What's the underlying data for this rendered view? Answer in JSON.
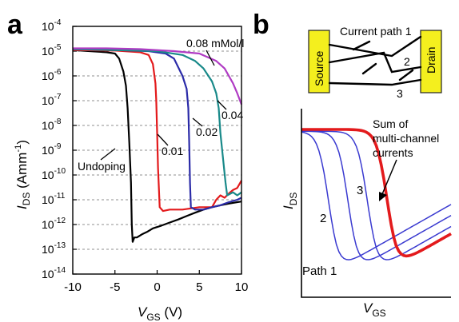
{
  "figure": {
    "panel_a": {
      "label": "a",
      "y_axis": {
        "main": "I",
        "sub": "DS",
        "unit": "(Amm",
        "unit_exp": "-1",
        "unit_close": ")"
      },
      "x_axis": {
        "main": "V",
        "sub": "GS",
        "unit": "(V)"
      },
      "annotations": [
        {
          "text": "0.08 mMol/l"
        },
        {
          "text": "0.04"
        },
        {
          "text": "0.02"
        },
        {
          "text": "0.01"
        },
        {
          "text": "Undoping"
        }
      ]
    },
    "panel_b": {
      "label": "b",
      "source_label": "Source",
      "drain_label": "Drain",
      "path_labels": [
        "Current path 1",
        "2",
        "3"
      ],
      "sum_label": [
        "Sum of",
        "multi-channel",
        "currents"
      ],
      "curve_labels": [
        "Path 1",
        "2",
        "3"
      ],
      "y_axis": {
        "main": "I",
        "sub": "DS"
      },
      "x_axis": {
        "main": "V",
        "sub": "GS"
      }
    }
  },
  "chart_data": [
    {
      "type": "line",
      "title": "",
      "xlabel": "VGS (V)",
      "ylabel": "IDS (Amm-1)",
      "log_y": true,
      "xlim": [
        -10,
        10
      ],
      "ylim": [
        1e-14,
        0.0001
      ],
      "grid": "horizontal dashed at each decade",
      "x_ticks": [
        "-10",
        "-5",
        "0",
        "5",
        "10"
      ],
      "y_ticks": [
        {
          "base": "10",
          "exp": "-4"
        },
        {
          "base": "10",
          "exp": "-5"
        },
        {
          "base": "10",
          "exp": "-6"
        },
        {
          "base": "10",
          "exp": "-7"
        },
        {
          "base": "10",
          "exp": "-8"
        },
        {
          "base": "10",
          "exp": "-9"
        },
        {
          "base": "10",
          "exp": "-10"
        },
        {
          "base": "10",
          "exp": "-11"
        },
        {
          "base": "10",
          "exp": "-12"
        },
        {
          "base": "10",
          "exp": "-13"
        },
        {
          "base": "10",
          "exp": "-14"
        }
      ],
      "series": [
        {
          "name": "Undoping",
          "color": "#000000",
          "points": [
            [
              -10,
              1.1e-05
            ],
            [
              -8,
              1e-05
            ],
            [
              -6,
              9e-06
            ],
            [
              -5,
              8e-06
            ],
            [
              -4.5,
              5e-06
            ],
            [
              -4,
              1.5e-06
            ],
            [
              -3.7,
              4e-07
            ],
            [
              -3.5,
              5e-08
            ],
            [
              -3.3,
              2e-09
            ],
            [
              -3.1,
              5e-11
            ],
            [
              -3,
              1e-12
            ],
            [
              -2.9,
              2e-13
            ],
            [
              -2.7,
              3e-13
            ],
            [
              -2.4,
              3e-13
            ],
            [
              -1.8,
              4e-13
            ],
            [
              -1.2,
              5e-13
            ],
            [
              -0.5,
              7e-13
            ],
            [
              0.5,
              9e-13
            ],
            [
              1.5,
              1.2e-12
            ],
            [
              2.5,
              1.6e-12
            ],
            [
              3.5,
              2.2e-12
            ],
            [
              4.5,
              3e-12
            ],
            [
              5.5,
              4e-12
            ],
            [
              6.5,
              5e-12
            ],
            [
              7.5,
              6e-12
            ],
            [
              8.5,
              7e-12
            ],
            [
              9.5,
              8e-12
            ],
            [
              10,
              8.5e-12
            ]
          ]
        },
        {
          "name": "0.01",
          "color": "#e31a1c",
          "points": [
            [
              -10,
              1.1e-05
            ],
            [
              -5,
              1.05e-05
            ],
            [
              -2,
              9e-06
            ],
            [
              -1,
              7e-06
            ],
            [
              -0.5,
              3e-06
            ],
            [
              -0.2,
              5e-07
            ],
            [
              -0.1,
              1e-07
            ],
            [
              0,
              5e-09
            ],
            [
              0.1,
              2e-10
            ],
            [
              0.3,
              5e-12
            ],
            [
              0.7,
              3.5e-12
            ],
            [
              1.5,
              4e-12
            ],
            [
              3,
              4e-12
            ],
            [
              5,
              5e-12
            ],
            [
              6.5,
              5e-12
            ],
            [
              7,
              1e-11
            ],
            [
              7.5,
              1.5e-11
            ],
            [
              8,
              1.2e-11
            ],
            [
              8.5,
              1.8e-11
            ],
            [
              9,
              2.5e-11
            ],
            [
              9.5,
              3e-11
            ],
            [
              10,
              6e-11
            ]
          ]
        },
        {
          "name": "0.02",
          "color": "#2b2ba8",
          "points": [
            [
              -10,
              1.2e-05
            ],
            [
              -5,
              1.1e-05
            ],
            [
              -1,
              1e-05
            ],
            [
              1,
              8e-06
            ],
            [
              2,
              5e-06
            ],
            [
              3,
              1e-06
            ],
            [
              3.5,
              3e-07
            ],
            [
              3.7,
              5e-08
            ],
            [
              3.8,
              2e-09
            ],
            [
              3.9,
              5e-11
            ],
            [
              4,
              5e-12
            ],
            [
              4.5,
              4e-12
            ],
            [
              5.5,
              4e-12
            ],
            [
              6.5,
              5e-12
            ],
            [
              7.5,
              6e-12
            ],
            [
              8.5,
              8e-12
            ],
            [
              9.5,
              1e-11
            ],
            [
              10,
              1.2e-11
            ]
          ]
        },
        {
          "name": "0.04",
          "color": "#1a8a8a",
          "points": [
            [
              -10,
              1.2e-05
            ],
            [
              -5,
              1.1e-05
            ],
            [
              0,
              1e-05
            ],
            [
              3,
              7e-06
            ],
            [
              4.5,
              4e-06
            ],
            [
              5.5,
              2e-06
            ],
            [
              6.5,
              6e-07
            ],
            [
              7,
              2e-07
            ],
            [
              7.3,
              5e-08
            ],
            [
              7.5,
              5e-09
            ],
            [
              7.8,
              5e-10
            ],
            [
              8.1,
              5e-11
            ],
            [
              8.3,
              1.5e-11
            ],
            [
              8.6,
              1.7e-11
            ],
            [
              9,
              2e-11
            ],
            [
              9.5,
              1.5e-11
            ],
            [
              10,
              2e-11
            ]
          ]
        },
        {
          "name": "0.08 mMol/l",
          "color": "#b03cc4",
          "points": [
            [
              -10,
              1.3e-05
            ],
            [
              -6,
              1.3e-05
            ],
            [
              -2,
              1.2e-05
            ],
            [
              2,
              1e-05
            ],
            [
              5,
              8e-06
            ],
            [
              7,
              4e-06
            ],
            [
              8,
              2e-06
            ],
            [
              9,
              5e-07
            ],
            [
              9.5,
              2e-07
            ],
            [
              10,
              7e-08
            ]
          ]
        }
      ]
    },
    {
      "type": "line",
      "title": "",
      "xlabel": "VGS",
      "ylabel": "IDS",
      "schematic": true,
      "series": [
        {
          "name": "Path 1",
          "color": "#3a3ad0",
          "shift": 0.0
        },
        {
          "name": "2",
          "color": "#3a3ad0",
          "shift": 0.13
        },
        {
          "name": "3",
          "color": "#3a3ad0",
          "shift": 0.26
        },
        {
          "name": "Sum of multi-channel currents",
          "color": "#e31a1c",
          "shift": 0.39
        }
      ]
    }
  ]
}
